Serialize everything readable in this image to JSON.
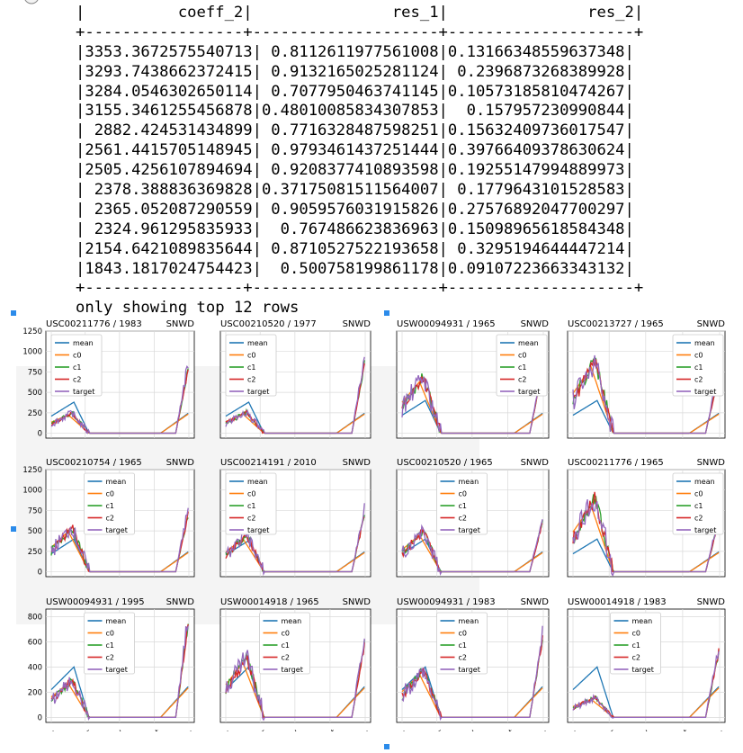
{
  "console": {
    "lines": [
      "|          coeff_2|               res_1|               res_2|",
      "+-----------------+--------------------+--------------------+",
      "|3353.3672575540713| 0.8112611977561008|0.13166348559637348|",
      "|3293.7438662372415| 0.9132165025281124| 0.2396873268389928|",
      "|3284.0546302650114| 0.7077950463741145|0.10573185810474267|",
      "|3155.3461255456878|0.48010085834307853|  0.157957230990844|",
      "| 2882.424531434899| 0.7716328487598251|0.15632409736017547|",
      "|2561.4415705148945| 0.9793461437251444|0.39766409378630624|",
      "|2505.4256107894694| 0.9208377410893598|0.19255147994889973|",
      "| 2378.388836369828|0.37175081511564007| 0.1779643101528583|",
      "| 2365.052087290559| 0.9059576031915826|0.27576892047700297|",
      "| 2324.961295835933|  0.767486623836963|0.15098965618584348|",
      "|2154.6421089835644| 0.8710527522193658| 0.3295194644447214|",
      "|1843.1817024754423|  0.500758199861178|0.09107223663343132|",
      "+-----------------+--------------------+--------------------+",
      "only showing top 12 rows"
    ]
  },
  "legend_labels": [
    "mean",
    "c0",
    "c1",
    "c2",
    "target"
  ],
  "colors": {
    "mean": "#1f77b4",
    "c0": "#ff7f0e",
    "c1": "#2ca02c",
    "c2": "#d62728",
    "target": "#9467bd",
    "grid": "#d9d9d9",
    "marker": "#2b8bea"
  },
  "x_ticks": [
    "Jan",
    "Apr",
    "Jul",
    "Oct",
    "Jan"
  ],
  "rows": [
    {
      "yticks": [
        "1250",
        "1000",
        "750",
        "500",
        "250",
        "0"
      ],
      "ymax": 1250,
      "ymin": -60
    },
    {
      "yticks": [
        "1250",
        "1000",
        "750",
        "500",
        "250",
        "0"
      ],
      "ymax": 1250,
      "ymin": -60
    },
    {
      "yticks": [
        "800",
        "600",
        "400",
        "200",
        "0"
      ],
      "ymax": 860,
      "ymin": -40
    }
  ],
  "chart_data": [
    {
      "type": "line",
      "title": "USC00211776 / 1983",
      "measurement": "SNWD",
      "row": 0,
      "legend": "top-left",
      "mean_peak": 380,
      "curve_peak": 250,
      "late_peak": 880
    },
    {
      "type": "line",
      "title": "USC00210520 / 1977",
      "measurement": "SNWD",
      "row": 0,
      "legend": "top-left",
      "mean_peak": 380,
      "curve_peak": 260,
      "late_peak": 950
    },
    {
      "type": "line",
      "title": "USW00094931 / 1965",
      "measurement": "SNWD",
      "row": 0,
      "legend": "top-right",
      "mean_peak": 400,
      "curve_peak": 700,
      "late_peak": 850
    },
    {
      "type": "line",
      "title": "USC00213727 / 1965",
      "measurement": "SNWD",
      "row": 0,
      "legend": "top-right",
      "mean_peak": 400,
      "curve_peak": 900,
      "late_peak": 800
    },
    {
      "type": "line",
      "title": "USC00210754 / 1965",
      "measurement": "SNWD",
      "row": 1,
      "legend": "top-center",
      "mean_peak": 400,
      "curve_peak": 550,
      "late_peak": 780
    },
    {
      "type": "line",
      "title": "USC00214191 / 2010",
      "measurement": "SNWD",
      "row": 1,
      "legend": "top-left",
      "mean_peak": 380,
      "curve_peak": 450,
      "late_peak": 780
    },
    {
      "type": "line",
      "title": "USC00210520 / 1965",
      "measurement": "SNWD",
      "row": 1,
      "legend": "top-center",
      "mean_peak": 400,
      "curve_peak": 500,
      "late_peak": 680
    },
    {
      "type": "line",
      "title": "USC00211776 / 1965",
      "measurement": "SNWD",
      "row": 1,
      "legend": "top-right",
      "mean_peak": 400,
      "curve_peak": 900,
      "late_peak": 680
    },
    {
      "type": "line",
      "title": "USW00094931 / 1995",
      "measurement": "SNWD",
      "row": 2,
      "legend": "top-center",
      "mean_peak": 400,
      "curve_peak": 300,
      "late_peak": 820
    },
    {
      "type": "line",
      "title": "USW00014918 / 1965",
      "measurement": "SNWD",
      "row": 2,
      "legend": "top-center",
      "mean_peak": 400,
      "curve_peak": 480,
      "late_peak": 650
    },
    {
      "type": "line",
      "title": "USW00094931 / 1983",
      "measurement": "SNWD",
      "row": 2,
      "legend": "top-center",
      "mean_peak": 400,
      "curve_peak": 380,
      "late_peak": 700
    },
    {
      "type": "line",
      "title": "USW00014918 / 1983",
      "measurement": "SNWD",
      "row": 2,
      "legend": "top-center",
      "mean_peak": 400,
      "curve_peak": 160,
      "late_peak": 580
    }
  ]
}
